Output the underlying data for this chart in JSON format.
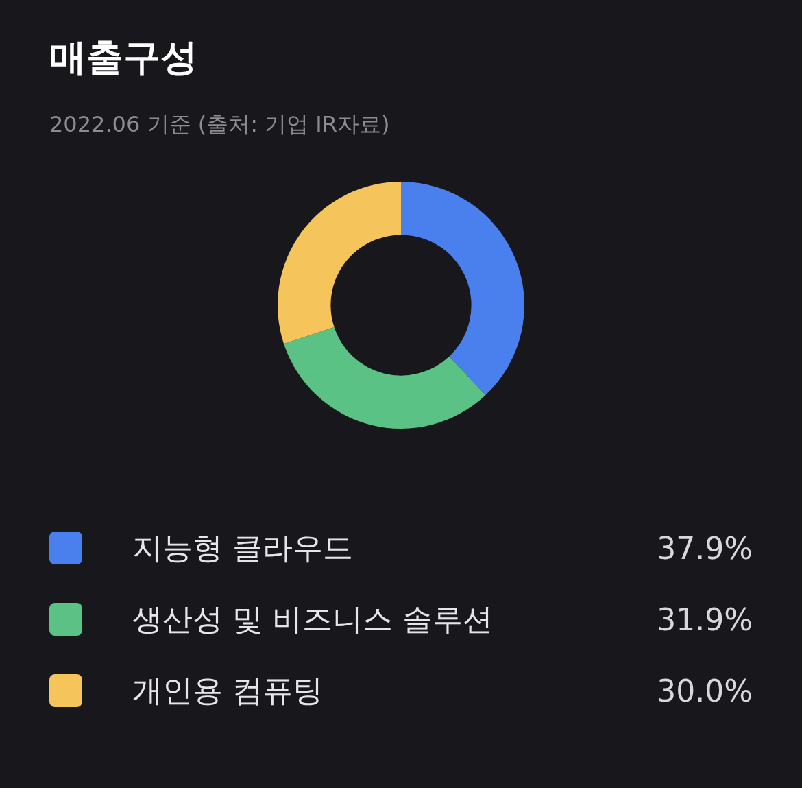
{
  "chart_data": {
    "type": "donut",
    "title": "매출구성",
    "subtitle": "2022.06 기준 (출처: 기업 IR자료)",
    "categories": [
      "지능형 클라우드",
      "생산성 및 비즈니스 솔루션",
      "개인용 컴퓨팅"
    ],
    "values": [
      37.9,
      31.9,
      30.0
    ],
    "value_labels": [
      "37.9%",
      "31.9%",
      "30.0%"
    ],
    "colors": [
      "#4a80ee",
      "#5bc286",
      "#f5c55c"
    ],
    "legend": "bottom"
  }
}
